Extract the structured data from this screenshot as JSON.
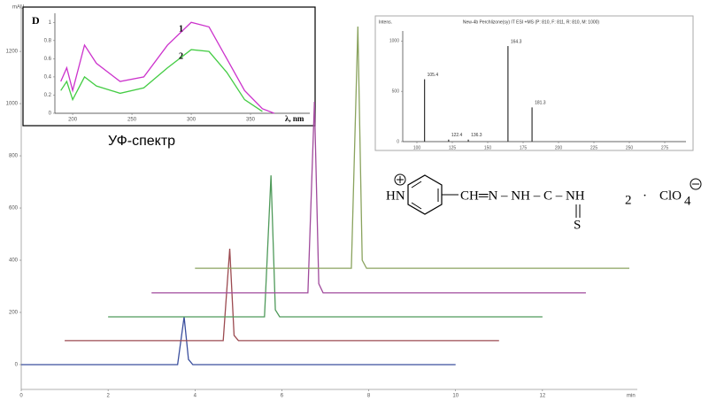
{
  "chart_data": [
    {
      "type": "line",
      "y_unit": "mAU",
      "x_unit": "min",
      "xlim": [
        0,
        14
      ],
      "ylim": [
        -95,
        1380
      ],
      "xticks": [
        0,
        2,
        4,
        6,
        8,
        10,
        12
      ],
      "yticks": [
        0,
        200,
        400,
        600,
        800,
        1000,
        1200
      ],
      "series": [
        {
          "color": "#3b4f9e",
          "x": [
            0,
            3.6,
            3.75,
            3.85,
            3.95,
            10
          ],
          "values": [
            0,
            0,
            183,
            20,
            0,
            0
          ]
        },
        {
          "color": "#9c4a50",
          "x": [
            1,
            4.65,
            4.8,
            4.9,
            5.0,
            11
          ],
          "values": [
            92,
            92,
            444,
            112,
            92,
            92
          ]
        },
        {
          "color": "#4f9a5a",
          "x": [
            2,
            5.6,
            5.75,
            5.85,
            5.95,
            12
          ],
          "values": [
            183,
            183,
            725,
            210,
            183,
            183
          ]
        },
        {
          "color": "#a04a9c",
          "x": [
            3,
            6.6,
            6.75,
            6.85,
            6.95,
            13
          ],
          "values": [
            275,
            275,
            1007,
            310,
            275,
            275
          ]
        },
        {
          "color": "#8aa35e",
          "x": [
            4,
            7.6,
            7.75,
            7.85,
            7.95,
            14
          ],
          "values": [
            369,
            369,
            1295,
            400,
            369,
            369
          ]
        }
      ]
    },
    {
      "type": "line",
      "ylabel": "D",
      "xlabel": "λ, nm",
      "caption": "УФ-спектр",
      "xlim": [
        185,
        400
      ],
      "ylim": [
        0,
        1.1
      ],
      "xticks": [
        200,
        250,
        300,
        350
      ],
      "yticks": [
        0,
        0.2,
        0.4,
        0.6,
        0.8,
        1
      ],
      "series": [
        {
          "name": "1",
          "color": "#cc33cc",
          "x": [
            190,
            195,
            200,
            210,
            220,
            240,
            260,
            280,
            300,
            315,
            330,
            345,
            360,
            370
          ],
          "values": [
            0.35,
            0.5,
            0.25,
            0.75,
            0.55,
            0.35,
            0.4,
            0.75,
            1.0,
            0.95,
            0.6,
            0.25,
            0.05,
            0
          ]
        },
        {
          "name": "2",
          "color": "#44cc44",
          "x": [
            190,
            195,
            200,
            210,
            220,
            240,
            260,
            280,
            300,
            315,
            330,
            345,
            360
          ],
          "values": [
            0.25,
            0.35,
            0.15,
            0.4,
            0.3,
            0.22,
            0.28,
            0.5,
            0.7,
            0.68,
            0.45,
            0.15,
            0.02
          ]
        }
      ]
    },
    {
      "type": "bar",
      "title": "New-4b  Perchlizone(sy) IT ESI +MS (P: 810, F: 811, R: 810, M: 1000)",
      "ylabel": "Intens.",
      "xlim": [
        90,
        290
      ],
      "ylim": [
        0,
        1100
      ],
      "xticks": [
        100,
        125,
        150,
        175,
        200,
        225,
        250,
        275
      ],
      "yticks": [
        0,
        500,
        1000
      ],
      "color": "#333333",
      "x": [
        105.4,
        122.4,
        136.3,
        164.3,
        181.3
      ],
      "values": [
        620,
        20,
        20,
        950,
        340
      ]
    }
  ],
  "structure": {
    "ring_n": "HN",
    "chain": "CH═N – NH – C – NH",
    "subscript_nh2": "2",
    "sulfur": "S",
    "dot": "·",
    "anion": "ClO",
    "subscript_anion": "4"
  }
}
